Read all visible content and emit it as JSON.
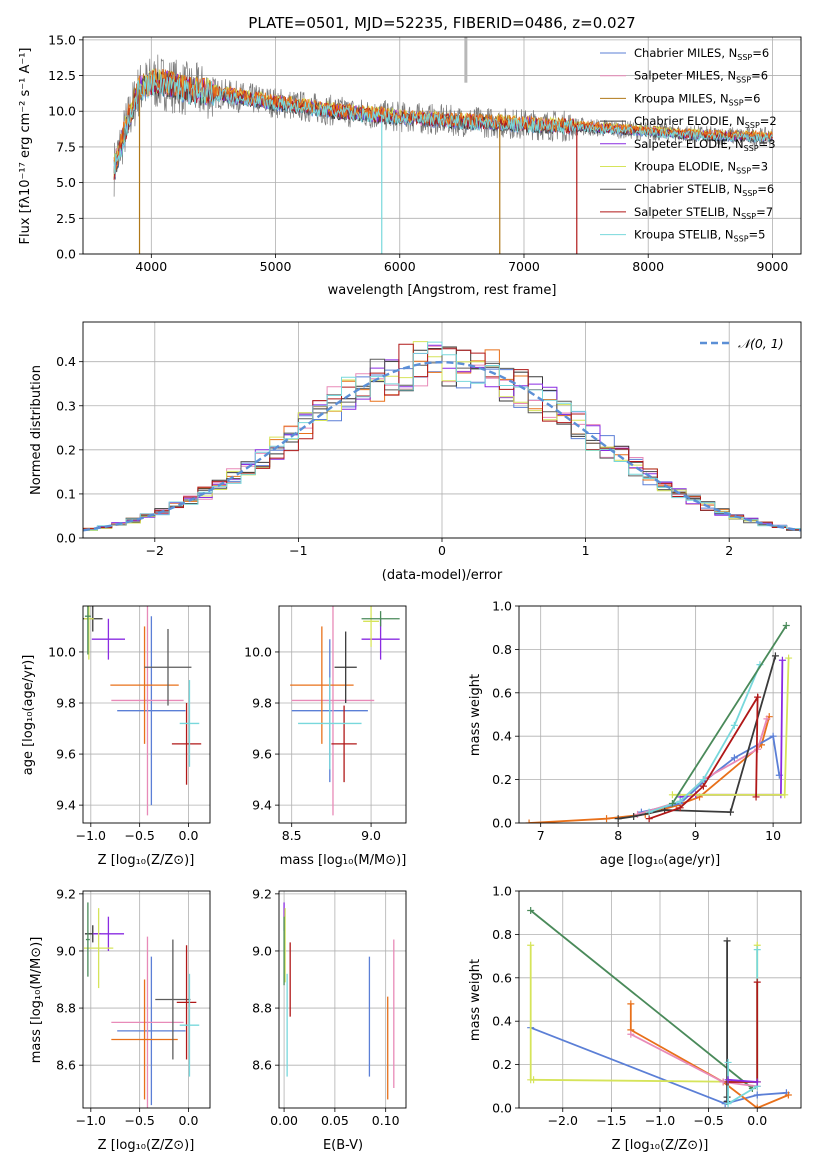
{
  "colors": {
    "Chabrier MILES": "#5b7fd6",
    "Salpeter MILES": "#e88ab8",
    "Kroupa MILES": "#b07818",
    "Chabrier ELODIE": "#3a3a3a",
    "Salpeter ELODIE": "#8a2be2",
    "Kroupa ELODIE": "#d6e45a",
    "Chabrier STELIB": "#5c5c5c",
    "Salpeter STELIB": "#b01818",
    "Kroupa STELIB": "#78d8dc",
    "orange": "#e8701a",
    "darkgreen": "#4a8a5a",
    "grey": "#9a9a9a",
    "gauss": "#5b8fd6"
  },
  "chart_data": [
    {
      "id": "spectrum",
      "type": "line",
      "title": "PLATE=0501, MJD=52235, FIBERID=0486, z=0.027",
      "xlabel": "wavelength [Angstrom, rest frame]",
      "ylabel": "Flux [fλ10⁻¹⁷ erg cm⁻² s⁻¹ A⁻¹]",
      "xlim": [
        3450,
        9230
      ],
      "ylim": [
        0,
        15.2
      ],
      "xticks": [
        4000,
        5000,
        6000,
        7000,
        8000,
        9000
      ],
      "yticks": [
        0.0,
        2.5,
        5.0,
        7.5,
        10.0,
        12.5,
        15.0
      ],
      "legend_position": "top-right",
      "legend": [
        {
          "name": "Chabrier MILES",
          "nssp": "6"
        },
        {
          "name": "Salpeter MILES",
          "nssp": "6"
        },
        {
          "name": "Kroupa MILES",
          "nssp": "6"
        },
        {
          "name": "Chabrier ELODIE",
          "nssp": "2"
        },
        {
          "name": "Salpeter ELODIE",
          "nssp": "3"
        },
        {
          "name": "Kroupa ELODIE",
          "nssp": "3"
        },
        {
          "name": "Chabrier STELIB",
          "nssp": "6"
        },
        {
          "name": "Salpeter STELIB",
          "nssp": "7"
        },
        {
          "name": "Kroupa STELIB",
          "nssp": "5"
        }
      ],
      "continuum": {
        "x": [
          3700,
          3800,
          3900,
          4000,
          4100,
          4300,
          4500,
          5000,
          5500,
          6000,
          6500,
          7000,
          7500,
          8000,
          8500,
          9000
        ],
        "y": [
          6.0,
          9.0,
          11.5,
          12.0,
          12.0,
          11.5,
          11.3,
          10.6,
          10.0,
          9.6,
          9.3,
          9.1,
          8.9,
          8.6,
          8.3,
          8.2
        ]
      }
    },
    {
      "id": "residuals",
      "type": "line",
      "xlabel": "(data-model)/error",
      "ylabel": "Normed distribution",
      "xlim": [
        -2.5,
        2.5
      ],
      "ylim": [
        0,
        0.49
      ],
      "xticks": [
        -2,
        -1,
        0,
        1,
        2
      ],
      "yticks": [
        0.0,
        0.1,
        0.2,
        0.3,
        0.4
      ],
      "legend_position": "top-right",
      "legend": [
        {
          "name": "𝒩(0, 1)"
        }
      ]
    },
    {
      "id": "age-vs-Z",
      "type": "scatter",
      "xlabel": "Z [log₁₀(Z/Z⊙)]",
      "ylabel": "age  [log₁₀(age/yr)]",
      "xlim": [
        -1.08,
        0.22
      ],
      "ylim": [
        9.33,
        10.18
      ],
      "xticks": [
        -1.0,
        -0.5,
        0.0
      ],
      "yticks": [
        9.4,
        9.6,
        9.8,
        10.0
      ],
      "points": [
        {
          "series": "Chabrier MILES",
          "x": -0.38,
          "y": 9.77,
          "xerr": 0.35,
          "yerr": 0.37
        },
        {
          "series": "Salpeter MILES",
          "x": -0.42,
          "y": 9.81,
          "xerr": 0.37,
          "yerr": 0.45
        },
        {
          "series": "orange",
          "x": -0.45,
          "y": 9.87,
          "xerr": 0.35,
          "yerr": 0.23
        },
        {
          "series": "Chabrier ELODIE",
          "x": -0.98,
          "y": 10.13,
          "xerr": 0.1,
          "yerr": 0.05
        },
        {
          "series": "Salpeter ELODIE",
          "x": -0.82,
          "y": 10.05,
          "xerr": 0.17,
          "yerr": 0.08
        },
        {
          "series": "Kroupa ELODIE",
          "x": -1.02,
          "y": 10.13,
          "xerr": 0.05,
          "yerr": 0.16
        },
        {
          "series": "Chabrier STELIB",
          "x": -0.21,
          "y": 9.94,
          "xerr": 0.24,
          "yerr": 0.15
        },
        {
          "series": "Salpeter STELIB",
          "x": -0.02,
          "y": 9.64,
          "xerr": 0.15,
          "yerr": 0.16
        },
        {
          "series": "Kroupa STELIB",
          "x": 0.01,
          "y": 9.72,
          "xerr": 0.1,
          "yerr": 0.17
        },
        {
          "series": "darkgreen",
          "x": -1.03,
          "y": 10.14,
          "xerr": 0.03,
          "yerr": 0.15
        }
      ]
    },
    {
      "id": "age-vs-mass",
      "type": "scatter",
      "xlabel": "mass [log₁₀(M/M⊙)]",
      "ylabel": "",
      "xlim": [
        8.42,
        9.22
      ],
      "ylim": [
        9.33,
        10.18
      ],
      "xticks": [
        8.5,
        9.0
      ],
      "yticks": [
        9.4,
        9.6,
        9.8,
        10.0
      ],
      "points": [
        {
          "series": "Chabrier MILES",
          "x": 8.74,
          "y": 9.77,
          "xerr": 0.24,
          "yerr": 0.28
        },
        {
          "series": "Salpeter MILES",
          "x": 8.76,
          "y": 9.81,
          "xerr": 0.26,
          "yerr": 0.45
        },
        {
          "series": "orange",
          "x": 8.69,
          "y": 9.87,
          "xerr": 0.2,
          "yerr": 0.23
        },
        {
          "series": "Chabrier ELODIE",
          "x": 8.84,
          "y": 9.94,
          "xerr": 0.07,
          "yerr": 0.14
        },
        {
          "series": "Salpeter ELODIE",
          "x": 9.06,
          "y": 10.05,
          "xerr": 0.12,
          "yerr": 0.08
        },
        {
          "series": "Kroupa ELODIE",
          "x": 9.0,
          "y": 10.12,
          "xerr": 0.05,
          "yerr": 0.1
        },
        {
          "series": "Salpeter STELIB",
          "x": 8.83,
          "y": 9.64,
          "xerr": 0.08,
          "yerr": 0.15
        },
        {
          "series": "Kroupa STELIB",
          "x": 8.74,
          "y": 9.72,
          "xerr": 0.2,
          "yerr": 0.18
        },
        {
          "series": "darkgreen",
          "x": 9.06,
          "y": 10.13,
          "xerr": 0.12,
          "yerr": 0.03
        }
      ]
    },
    {
      "id": "massweight-vs-age",
      "type": "line",
      "xlabel": "age  [log₁₀(age/yr)]",
      "ylabel": "mass weight",
      "xlim": [
        6.72,
        10.36
      ],
      "ylim": [
        0,
        1.0
      ],
      "xticks": [
        7,
        8,
        9,
        10
      ],
      "yticks": [
        0.0,
        0.2,
        0.4,
        0.6,
        0.8,
        1.0
      ],
      "series": [
        {
          "name": "orange",
          "x": [
            6.85,
            7.85,
            8.35,
            8.75,
            9.05,
            9.85,
            9.95
          ],
          "y": [
            0.0,
            0.02,
            0.04,
            0.08,
            0.12,
            0.36,
            0.49
          ]
        },
        {
          "name": "Chabrier MILES",
          "x": [
            8.3,
            8.8,
            9.1,
            9.5,
            10.0,
            10.08
          ],
          "y": [
            0.05,
            0.09,
            0.19,
            0.3,
            0.4,
            0.22
          ]
        },
        {
          "name": "Salpeter MILES",
          "x": [
            8.25,
            8.8,
            9.1,
            9.8,
            9.92
          ],
          "y": [
            0.04,
            0.1,
            0.2,
            0.34,
            0.48
          ]
        },
        {
          "name": "Chabrier ELODIE",
          "x": [
            8.0,
            8.2,
            8.6,
            9.45,
            10.03
          ],
          "y": [
            0.02,
            0.03,
            0.06,
            0.05,
            0.77
          ]
        },
        {
          "name": "Salpeter ELODIE",
          "x": [
            8.8,
            9.0,
            10.1,
            10.12
          ],
          "y": [
            0.12,
            0.13,
            0.13,
            0.75
          ]
        },
        {
          "name": "Kroupa ELODIE",
          "x": [
            8.7,
            10.15,
            10.2
          ],
          "y": [
            0.13,
            0.13,
            0.76
          ]
        },
        {
          "name": "Salpeter STELIB",
          "x": [
            8.4,
            8.8,
            9.1,
            9.8,
            9.78
          ],
          "y": [
            0.02,
            0.07,
            0.17,
            0.58,
            0.12
          ]
        },
        {
          "name": "Kroupa STELIB",
          "x": [
            8.4,
            8.8,
            9.1,
            9.5,
            9.83
          ],
          "y": [
            0.05,
            0.1,
            0.2,
            0.45,
            0.73
          ]
        },
        {
          "name": "darkgreen",
          "x": [
            8.7,
            10.17
          ],
          "y": [
            0.09,
            0.91
          ]
        }
      ]
    },
    {
      "id": "mass-vs-Z",
      "type": "scatter",
      "xlabel": "Z [log₁₀(Z/Z⊙)]",
      "ylabel": "mass [log₁₀(M/M⊙)]",
      "xlim": [
        -1.08,
        0.22
      ],
      "ylim": [
        8.45,
        9.21
      ],
      "xticks": [
        -1.0,
        -0.5,
        0.0
      ],
      "yticks": [
        8.6,
        8.8,
        9.0,
        9.2
      ],
      "points": [
        {
          "series": "Chabrier MILES",
          "x": -0.38,
          "y": 8.72,
          "xerr": 0.35,
          "yerr": 0.26
        },
        {
          "series": "Salpeter MILES",
          "x": -0.42,
          "y": 8.75,
          "xerr": 0.37,
          "yerr": 0.3
        },
        {
          "series": "orange",
          "x": -0.45,
          "y": 8.69,
          "xerr": 0.34,
          "yerr": 0.21
        },
        {
          "series": "Chabrier ELODIE",
          "x": -0.98,
          "y": 9.06,
          "xerr": 0.08,
          "yerr": 0.03
        },
        {
          "series": "Salpeter ELODIE",
          "x": -0.82,
          "y": 9.06,
          "xerr": 0.16,
          "yerr": 0.06
        },
        {
          "series": "Kroupa ELODIE",
          "x": -0.92,
          "y": 9.01,
          "xerr": 0.15,
          "yerr": 0.14
        },
        {
          "series": "Chabrier STELIB",
          "x": -0.16,
          "y": 8.83,
          "xerr": 0.18,
          "yerr": 0.21
        },
        {
          "series": "Salpeter STELIB",
          "x": -0.02,
          "y": 8.82,
          "xerr": 0.1,
          "yerr": 0.2
        },
        {
          "series": "Kroupa STELIB",
          "x": 0.01,
          "y": 8.74,
          "xerr": 0.1,
          "yerr": 0.18
        },
        {
          "series": "darkgreen",
          "x": -1.03,
          "y": 9.04,
          "xerr": 0.02,
          "yerr": 0.13
        }
      ]
    },
    {
      "id": "mass-vs-ebv",
      "type": "scatter",
      "xlabel": "E(B-V)",
      "ylabel": "",
      "xlim": [
        -0.005,
        0.12
      ],
      "ylim": [
        8.45,
        9.21
      ],
      "xticks": [
        0.0,
        0.05,
        0.1
      ],
      "yticks": [
        8.6,
        8.8,
        9.0,
        9.2
      ],
      "points": [
        {
          "series": "Chabrier MILES",
          "x": 0.084,
          "y": 8.77,
          "yerr": 0.21
        },
        {
          "series": "Salpeter MILES",
          "x": 0.108,
          "y": 8.78,
          "yerr": 0.26
        },
        {
          "series": "orange",
          "x": 0.102,
          "y": 8.66,
          "yerr": 0.18
        },
        {
          "series": "Salpeter ELODIE",
          "x": 0.0,
          "y": 9.12,
          "yerr": 0.05
        },
        {
          "series": "Kroupa ELODIE",
          "x": 0.001,
          "y": 9.02,
          "yerr": 0.13
        },
        {
          "series": "Salpeter STELIB",
          "x": 0.006,
          "y": 8.9,
          "yerr": 0.13
        },
        {
          "series": "Kroupa STELIB",
          "x": 0.003,
          "y": 8.74,
          "yerr": 0.18
        },
        {
          "series": "darkgreen",
          "x": 0.0,
          "y": 9.0,
          "yerr": 0.12
        }
      ]
    },
    {
      "id": "massweight-vs-Z",
      "type": "line",
      "xlabel": "Z [log₁₀(Z/Z⊙)]",
      "ylabel": "mass weight",
      "xlim": [
        -2.45,
        0.45
      ],
      "ylim": [
        0,
        1.0
      ],
      "xticks": [
        -2.0,
        -1.5,
        -1.0,
        -0.5,
        0.0
      ],
      "yticks": [
        0.0,
        0.2,
        0.4,
        0.6,
        0.8,
        1.0
      ],
      "series": [
        {
          "name": "darkgreen",
          "x": [
            -2.33,
            -0.05
          ],
          "y": [
            0.91,
            0.09
          ]
        },
        {
          "name": "Chabrier MILES",
          "x": [
            -2.33,
            -0.33,
            0.0,
            0.3
          ],
          "y": [
            0.37,
            0.02,
            0.06,
            0.07
          ]
        },
        {
          "name": "Kroupa ELODIE",
          "x": [
            -2.33,
            -2.33,
            -2.3,
            0.0,
            0.0
          ],
          "y": [
            0.75,
            0.13,
            0.13,
            0.12,
            0.75
          ]
        },
        {
          "name": "orange",
          "x": [
            -1.3,
            -1.3,
            -0.35,
            0.0,
            0.32
          ],
          "y": [
            0.48,
            0.36,
            0.12,
            0.0,
            0.06
          ]
        },
        {
          "name": "Salpeter MILES",
          "x": [
            -1.3,
            -0.35,
            0.0
          ],
          "y": [
            0.34,
            0.12,
            0.1
          ]
        },
        {
          "name": "Chabrier ELODIE",
          "x": [
            -0.31,
            -0.31,
            -0.31
          ],
          "y": [
            0.77,
            0.03,
            0.05
          ]
        },
        {
          "name": "Kroupa STELIB",
          "x": [
            -0.3,
            -0.3,
            0.0,
            0.0
          ],
          "y": [
            0.21,
            0.02,
            0.1,
            0.73
          ]
        },
        {
          "name": "Salpeter STELIB",
          "x": [
            -0.3,
            0.0,
            0.0
          ],
          "y": [
            0.12,
            0.12,
            0.58
          ]
        },
        {
          "name": "Salpeter ELODIE",
          "x": [
            -0.3,
            0.0
          ],
          "y": [
            0.13,
            0.12
          ]
        }
      ]
    }
  ]
}
